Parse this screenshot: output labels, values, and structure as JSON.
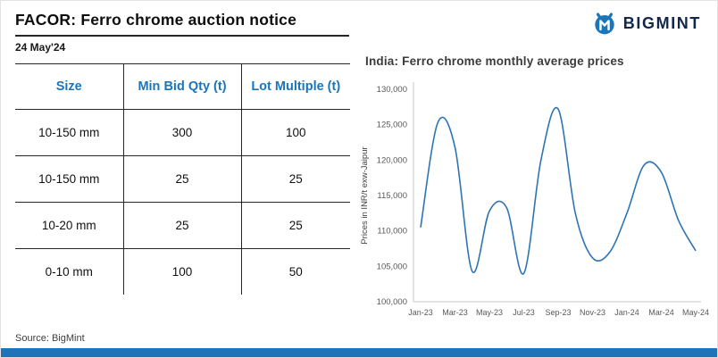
{
  "header": {
    "title": "FACOR: Ferro chrome auction notice",
    "date": "24 May'24"
  },
  "logo": {
    "brand": "BIGMINT"
  },
  "table": {
    "columns": [
      "Size",
      "Min Bid Qty (t)",
      "Lot Multiple (t)"
    ],
    "rows": [
      [
        "10-150 mm",
        "300",
        "100"
      ],
      [
        "10-150 mm",
        "25",
        "25"
      ],
      [
        "10-20 mm",
        "25",
        "25"
      ],
      [
        "0-10 mm",
        "100",
        "50"
      ]
    ]
  },
  "source": "Source: BigMint",
  "chart_data": {
    "type": "line",
    "title": "India: Ferro chrome monthly average prices",
    "ylabel": "Prices in INR/t exw-Jaipur",
    "xlabel": "",
    "ylim": [
      100000,
      130000
    ],
    "ytick_step": 5000,
    "x": [
      "Jan-23",
      "Feb-23",
      "Mar-23",
      "Apr-23",
      "May-23",
      "Jun-23",
      "Jul-23",
      "Aug-23",
      "Sep-23",
      "Oct-23",
      "Nov-23",
      "Dec-23",
      "Jan-24",
      "Feb-24",
      "Mar-24",
      "Apr-24",
      "May-24"
    ],
    "xtick_labels": [
      "Jan-23",
      "Mar-23",
      "May-23",
      "Jul-23",
      "Sep-23",
      "Nov-23",
      "Jan-24",
      "Mar-24",
      "May-24"
    ],
    "series": [
      {
        "name": "Ferro chrome monthly average price (INR/t exw-Jaipur)",
        "values": [
          110500,
          125300,
          121800,
          104300,
          112800,
          113300,
          104000,
          120000,
          127200,
          112500,
          106200,
          107000,
          112500,
          119300,
          118300,
          111500,
          107200
        ]
      }
    ],
    "grid": false,
    "legend": false,
    "line_color": "#2e74b5"
  },
  "colors": {
    "accent_blue": "#1b75bb",
    "brand_navy": "#12284b",
    "table_line": "#262626",
    "axis_gray": "#c8c8c8",
    "bottom_bar": "#2173b9"
  }
}
